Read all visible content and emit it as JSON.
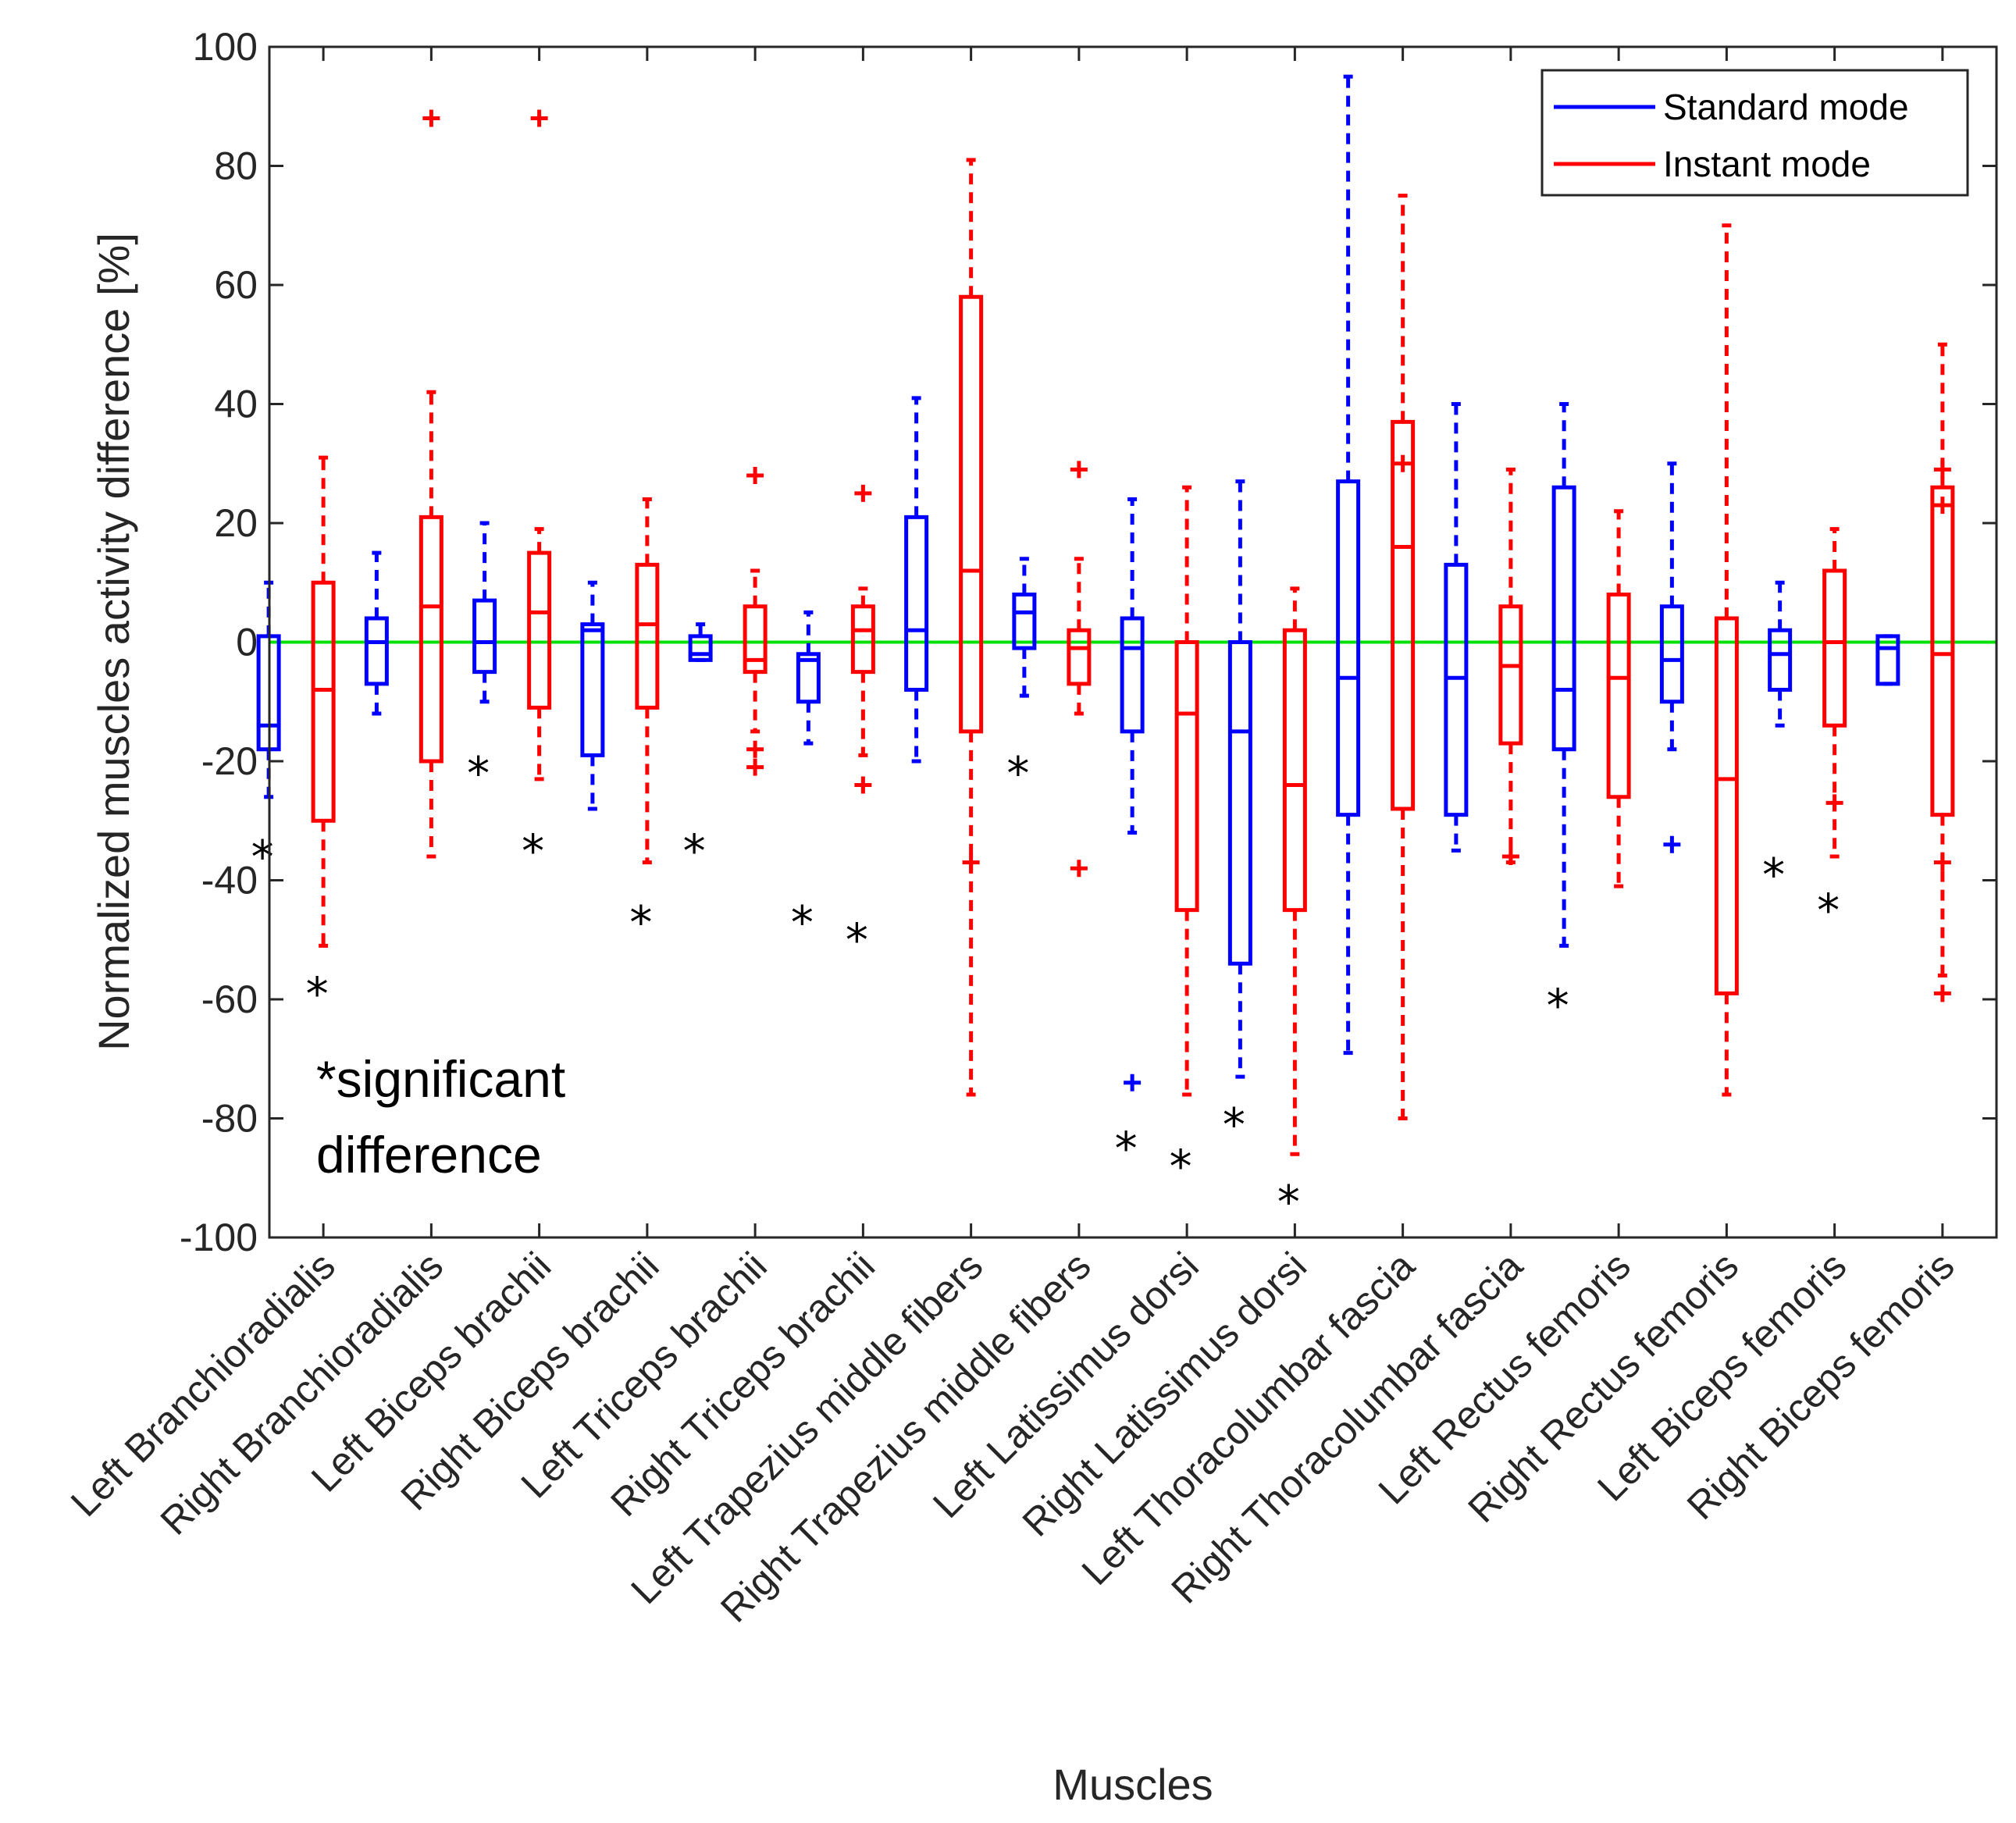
{
  "chart_data": {
    "type": "boxplot",
    "xlabel": "Muscles",
    "ylabel": "Normalized muscles activity difference [%]",
    "ylim": [
      -100,
      100
    ],
    "yticks": [
      "100",
      "80",
      "60",
      "40",
      "20",
      "0",
      "-20",
      "-40",
      "-60",
      "-80",
      "-100"
    ],
    "yticks_values": [
      100,
      80,
      60,
      40,
      20,
      0,
      -20,
      -40,
      -60,
      -80,
      -100
    ],
    "reference_line": {
      "value": 0,
      "color": "#00e000"
    },
    "annotation": {
      "line1": "*significant",
      "line2": "difference"
    },
    "significance_symbol": "*",
    "legend": {
      "position": "top-right",
      "entries": [
        {
          "label": "Standard mode",
          "color": "#0000ff"
        },
        {
          "label": "Instant mode",
          "color": "#ff0000"
        }
      ]
    },
    "categories": [
      "Left Branchioradialis",
      "Right Branchioradialis",
      "Left Biceps brachii",
      "Right Biceps brachii",
      "Left Triceps brachii",
      "Right Triceps brachii",
      "Left Trapezius middle fibers",
      "Right Trapezius middle fibers",
      "Left Latissimus dorsi",
      "Right Latissimus dorsi",
      "Left Thoracolumbar fascia",
      "Right Thoracolumbar fascia",
      "Left Rectus femoris",
      "Right Rectus femoris",
      "Left Biceps femoris",
      "Right Biceps femoris"
    ],
    "series": [
      {
        "name": "Standard mode",
        "color": "#0000ff",
        "boxes": [
          {
            "whisker_low": -26,
            "q1": -18,
            "median": -14,
            "q3": 1,
            "whisker_high": 10,
            "outliers": [],
            "significant": true,
            "sig_y": -35
          },
          {
            "whisker_low": -12,
            "q1": -7,
            "median": 0,
            "q3": 4,
            "whisker_high": 15,
            "outliers": [],
            "significant": false,
            "sig_y": null
          },
          {
            "whisker_low": -10,
            "q1": -5,
            "median": 0,
            "q3": 7,
            "whisker_high": 20,
            "outliers": [],
            "significant": true,
            "sig_y": -21
          },
          {
            "whisker_low": -28,
            "q1": -19,
            "median": 2,
            "q3": 3,
            "whisker_high": 10,
            "outliers": [],
            "significant": false,
            "sig_y": null
          },
          {
            "whisker_low": -3,
            "q1": -3,
            "median": -2,
            "q3": 1,
            "whisker_high": 3,
            "outliers": [],
            "significant": true,
            "sig_y": -34
          },
          {
            "whisker_low": -17,
            "q1": -10,
            "median": -3,
            "q3": -2,
            "whisker_high": 5,
            "outliers": [],
            "significant": true,
            "sig_y": -46
          },
          {
            "whisker_low": -20,
            "q1": -8,
            "median": 2,
            "q3": 21,
            "whisker_high": 41,
            "outliers": [],
            "significant": false,
            "sig_y": null
          },
          {
            "whisker_low": -9,
            "q1": -1,
            "median": 5,
            "q3": 8,
            "whisker_high": 14,
            "outliers": [],
            "significant": true,
            "sig_y": -21
          },
          {
            "whisker_low": -32,
            "q1": -15,
            "median": -1,
            "q3": 4,
            "whisker_high": 24,
            "outliers": [
              -74
            ],
            "significant": true,
            "sig_y": -84
          },
          {
            "whisker_low": -73,
            "q1": -54,
            "median": -15,
            "q3": 0,
            "whisker_high": 27,
            "outliers": [],
            "significant": true,
            "sig_y": -80
          },
          {
            "whisker_low": -69,
            "q1": -29,
            "median": -6,
            "q3": 27,
            "whisker_high": 95,
            "outliers": [],
            "significant": false,
            "sig_y": null
          },
          {
            "whisker_low": -35,
            "q1": -29,
            "median": -6,
            "q3": 13,
            "whisker_high": 40,
            "outliers": [],
            "significant": false,
            "sig_y": null
          },
          {
            "whisker_low": -51,
            "q1": -18,
            "median": -8,
            "q3": 26,
            "whisker_high": 40,
            "outliers": [],
            "significant": true,
            "sig_y": -60
          },
          {
            "whisker_low": -18,
            "q1": -10,
            "median": -3,
            "q3": 6,
            "whisker_high": 30,
            "outliers": [
              -34
            ],
            "significant": false,
            "sig_y": null
          },
          {
            "whisker_low": -14,
            "q1": -8,
            "median": -2,
            "q3": 2,
            "whisker_high": 10,
            "outliers": [],
            "significant": true,
            "sig_y": -38
          },
          {
            "whisker_low": -7,
            "q1": -7,
            "median": -1,
            "q3": 1,
            "whisker_high": 1,
            "outliers": [],
            "significant": false,
            "sig_y": null
          }
        ]
      },
      {
        "name": "Instant mode",
        "color": "#ff0000",
        "boxes": [
          {
            "whisker_low": -51,
            "q1": -30,
            "median": -8,
            "q3": 10,
            "whisker_high": 31,
            "outliers": [],
            "significant": true,
            "sig_y": -58
          },
          {
            "whisker_low": -36,
            "q1": -20,
            "median": 6,
            "q3": 21,
            "whisker_high": 42,
            "outliers": [
              88
            ],
            "significant": false,
            "sig_y": null
          },
          {
            "whisker_low": -23,
            "q1": -11,
            "median": 5,
            "q3": 15,
            "whisker_high": 19,
            "outliers": [
              88
            ],
            "significant": true,
            "sig_y": -34
          },
          {
            "whisker_low": -37,
            "q1": -11,
            "median": 3,
            "q3": 13,
            "whisker_high": 24,
            "outliers": [],
            "significant": true,
            "sig_y": -46
          },
          {
            "whisker_low": -15,
            "q1": -5,
            "median": -3,
            "q3": 6,
            "whisker_high": 12,
            "outliers": [
              28,
              -18,
              -21
            ],
            "significant": false,
            "sig_y": null
          },
          {
            "whisker_low": -19,
            "q1": -5,
            "median": 2,
            "q3": 6,
            "whisker_high": 9,
            "outliers": [
              25,
              -24
            ],
            "significant": true,
            "sig_y": -49
          },
          {
            "whisker_low": -76,
            "q1": -15,
            "median": 12,
            "q3": 58,
            "whisker_high": 81,
            "outliers": [
              -37
            ],
            "significant": false,
            "sig_y": null
          },
          {
            "whisker_low": -12,
            "q1": -7,
            "median": -1,
            "q3": 2,
            "whisker_high": 14,
            "outliers": [
              29,
              -38
            ],
            "significant": false,
            "sig_y": null
          },
          {
            "whisker_low": -76,
            "q1": -45,
            "median": -12,
            "q3": 0,
            "whisker_high": 26,
            "outliers": [],
            "significant": true,
            "sig_y": -87
          },
          {
            "whisker_low": -86,
            "q1": -45,
            "median": -24,
            "q3": 2,
            "whisker_high": 9,
            "outliers": [],
            "significant": true,
            "sig_y": -93
          },
          {
            "whisker_low": -80,
            "q1": -28,
            "median": 16,
            "q3": 37,
            "whisker_high": 75,
            "outliers": [
              30
            ],
            "significant": false,
            "sig_y": null
          },
          {
            "whisker_low": -37,
            "q1": -17,
            "median": -4,
            "q3": 6,
            "whisker_high": 29,
            "outliers": [
              -36
            ],
            "significant": false,
            "sig_y": null
          },
          {
            "whisker_low": -41,
            "q1": -26,
            "median": -6,
            "q3": 8,
            "whisker_high": 22,
            "outliers": [],
            "significant": false,
            "sig_y": null
          },
          {
            "whisker_low": -76,
            "q1": -59,
            "median": -23,
            "q3": 4,
            "whisker_high": 70,
            "outliers": [],
            "significant": false,
            "sig_y": null
          },
          {
            "whisker_low": -36,
            "q1": -14,
            "median": 0,
            "q3": 12,
            "whisker_high": 19,
            "outliers": [
              -27
            ],
            "significant": true,
            "sig_y": -44
          },
          {
            "whisker_low": -56,
            "q1": -29,
            "median": -2,
            "q3": 26,
            "whisker_high": 50,
            "outliers": [
              29,
              23,
              -37,
              -59
            ],
            "significant": false,
            "sig_y": null
          }
        ]
      }
    ]
  }
}
